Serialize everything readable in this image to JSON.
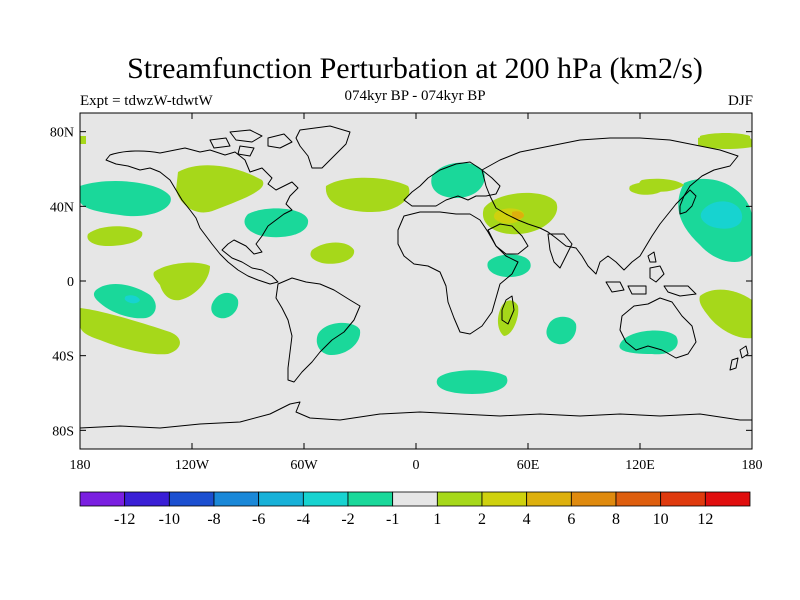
{
  "title": "Streamfunction Perturbation at 200 hPa (km2/s)",
  "subtitle": "074kyr BP - 074kyr BP",
  "left_label": "Expt = tdwzW-tdwtW",
  "right_label": "DJF",
  "map": {
    "projection": "cylindrical-equidistant",
    "background_color": "#e6e6e6",
    "lon_range": [
      -180,
      180
    ],
    "lat_range": [
      -90,
      90
    ],
    "lat_ticks": [
      {
        "value": 80,
        "label": "80N"
      },
      {
        "value": 40,
        "label": "40N"
      },
      {
        "value": 0,
        "label": "0"
      },
      {
        "value": -40,
        "label": "40S"
      },
      {
        "value": -80,
        "label": "80S"
      }
    ],
    "lon_ticks": [
      {
        "value": -180,
        "label": "180"
      },
      {
        "value": -120,
        "label": "120W"
      },
      {
        "value": -60,
        "label": "60W"
      },
      {
        "value": 0,
        "label": "0"
      },
      {
        "value": 60,
        "label": "60E"
      },
      {
        "value": 120,
        "label": "120E"
      },
      {
        "value": 180,
        "label": "180"
      }
    ]
  },
  "colorbar": {
    "colors": [
      "#7a1fe0",
      "#3a1fd6",
      "#1b4fd0",
      "#1a88d8",
      "#17b1d8",
      "#17d3d0",
      "#1ad89a",
      "#e6e6e6",
      "#a6d81a",
      "#cfd10e",
      "#ddb00d",
      "#df8a0e",
      "#de5e0e",
      "#df3a0e",
      "#e00e0e"
    ],
    "labels": [
      "-12",
      "-10",
      "-8",
      "-6",
      "-4",
      "-2",
      "-1",
      "1",
      "2",
      "4",
      "6",
      "8",
      "10",
      "12"
    ]
  },
  "chart_data": {
    "type": "heatmap",
    "title": "Streamfunction Perturbation at 200 hPa (km2/s)",
    "subtitle": "074kyr BP - 074kyr BP",
    "season": "DJF",
    "levels": [
      -12,
      -10,
      -8,
      -6,
      -4,
      -2,
      -1,
      1,
      2,
      4,
      6,
      8,
      10,
      12
    ],
    "features": [
      {
        "region": "North Pacific 40N 165W",
        "value_range": [
          -2,
          -1
        ]
      },
      {
        "region": "NW Pacific near Japan 30N 165E",
        "value_range": [
          -6,
          -2
        ]
      },
      {
        "region": "Western North America 45N 120W",
        "value_range": [
          1,
          4
        ]
      },
      {
        "region": "Eastern North America 30N 75W",
        "value_range": [
          -2,
          -1
        ]
      },
      {
        "region": "North Atlantic 45N 30W",
        "value_range": [
          1,
          2
        ]
      },
      {
        "region": "Europe 50N 25E",
        "value_range": [
          -2,
          -1
        ]
      },
      {
        "region": "Middle East 35N 55E",
        "value_range": [
          2,
          4
        ]
      },
      {
        "region": "East Africa 10N 45E",
        "value_range": [
          -2,
          -1
        ]
      },
      {
        "region": "Central Pacific 10S 140W",
        "value_range": [
          1,
          2
        ]
      },
      {
        "region": "South Pacific 10S 160W",
        "value_range": [
          -4,
          -1
        ]
      },
      {
        "region": "South Pacific 25S 170W",
        "value_range": [
          1,
          2
        ]
      },
      {
        "region": "Madagascar 20S 48E",
        "value_range": [
          1,
          2
        ]
      },
      {
        "region": "Southern Indian Ocean 25S 75E",
        "value_range": [
          -2,
          -1
        ]
      },
      {
        "region": "Australia 30S 125E",
        "value_range": [
          -2,
          -1
        ]
      },
      {
        "region": "SW Pacific 20S 160E",
        "value_range": [
          1,
          2
        ]
      },
      {
        "region": "Southern Ocean 55S 30E",
        "value_range": [
          -2,
          -1
        ]
      },
      {
        "region": "South Atlantic 30S 40W",
        "value_range": [
          -2,
          -1
        ]
      }
    ]
  }
}
